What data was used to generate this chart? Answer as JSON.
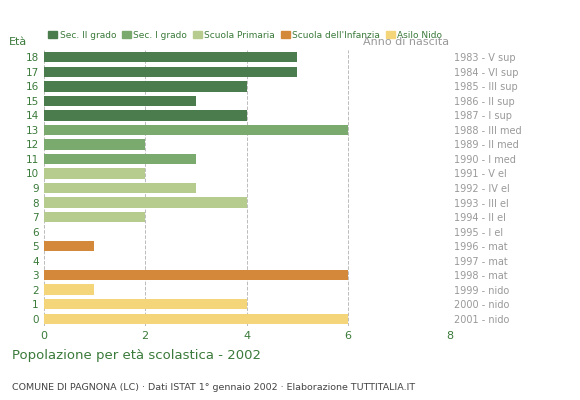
{
  "ages": [
    18,
    17,
    16,
    15,
    14,
    13,
    12,
    11,
    10,
    9,
    8,
    7,
    6,
    5,
    4,
    3,
    2,
    1,
    0
  ],
  "birth_years": [
    "1983 - V sup",
    "1984 - VI sup",
    "1985 - III sup",
    "1986 - II sup",
    "1987 - I sup",
    "1988 - III med",
    "1989 - II med",
    "1990 - I med",
    "1991 - V el",
    "1992 - IV el",
    "1993 - III el",
    "1994 - II el",
    "1995 - I el",
    "1996 - mat",
    "1997 - mat",
    "1998 - mat",
    "1999 - nido",
    "2000 - nido",
    "2001 - nido"
  ],
  "categories": [
    "Sec. II grado",
    "Sec. I grado",
    "Scuola Primaria",
    "Scuola dell'Infanzia",
    "Asilo Nido"
  ],
  "colors": [
    "#4a7c4e",
    "#7aaa6e",
    "#b5cc8e",
    "#d4883a",
    "#f5d57a"
  ],
  "data": {
    "Sec. II grado": [
      5,
      5,
      4,
      3,
      4,
      0,
      0,
      0,
      0,
      0,
      0,
      0,
      0,
      0,
      0,
      0,
      0,
      0,
      0
    ],
    "Sec. I grado": [
      0,
      0,
      0,
      0,
      0,
      6,
      2,
      3,
      0,
      0,
      0,
      0,
      0,
      0,
      0,
      0,
      0,
      0,
      0
    ],
    "Scuola Primaria": [
      0,
      0,
      0,
      0,
      0,
      0,
      0,
      0,
      2,
      3,
      4,
      2,
      0,
      0,
      0,
      0,
      0,
      0,
      0
    ],
    "Scuola dell'Infanzia": [
      0,
      0,
      0,
      0,
      0,
      0,
      0,
      0,
      0,
      0,
      0,
      0,
      0,
      1,
      0,
      6,
      0,
      0,
      0
    ],
    "Asilo Nido": [
      0,
      0,
      0,
      0,
      0,
      0,
      0,
      0,
      0,
      0,
      0,
      0,
      0,
      0,
      0,
      0,
      1,
      4,
      6
    ]
  },
  "xlim": [
    0,
    8
  ],
  "xticks": [
    0,
    2,
    4,
    6,
    8
  ],
  "title": "Popolazione per età scolastica - 2002",
  "subtitle": "COMUNE DI PAGNONA (LC) · Dati ISTAT 1° gennaio 2002 · Elaborazione TUTTITALIA.IT",
  "ylabel_left": "Età",
  "ylabel_right": "Anno di nascita",
  "bg_color": "#ffffff",
  "grid_color": "#bbbbbb",
  "title_color": "#3a7a3a",
  "subtitle_color": "#444444",
  "left_tick_color": "#3a7a3a",
  "right_tick_color": "#999999",
  "bottom_tick_color": "#3a7a3a"
}
